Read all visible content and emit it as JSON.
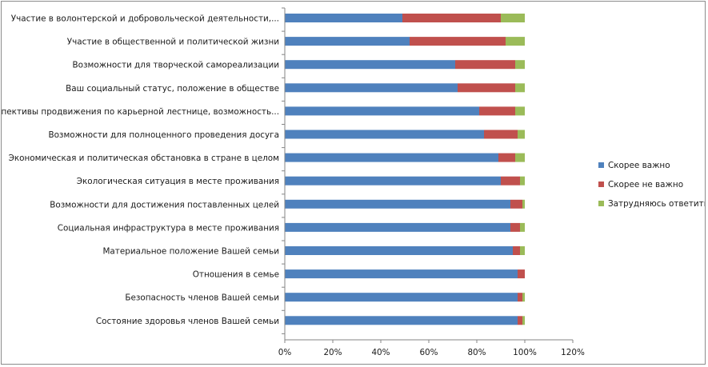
{
  "chart_data": {
    "type": "bar",
    "orientation": "horizontal",
    "stacked": true,
    "categories": [
      "Участие в волонтерской и добровольческой деятельности,...",
      "Участие в общественной и политической жизни",
      "Возможности для творческой самореализации",
      "Ваш социальный статус, положение в обществе",
      "Перспективы продвижения по карьерной лестнице, возможность...",
      "Возможности для полноценного проведения досуга",
      "Экономическая и политическая обстановка в стране в целом",
      "Экологическая ситуация в месте проживания",
      "Возможности для достижения поставленных целей",
      "Социальная инфраструктура в месте проживания",
      "Материальное положение Вашей семьи",
      "Отношения в семье",
      "Безопасность членов Вашей семьи",
      "Состояние здоровья членов Вашей семьи"
    ],
    "series": [
      {
        "name": "Скорее важно",
        "color": "#4f81bd",
        "values": [
          49,
          52,
          71,
          72,
          81,
          83,
          89,
          90,
          94,
          94,
          95,
          97,
          97,
          97
        ]
      },
      {
        "name": "Скорее не важно",
        "color": "#c0504d",
        "values": [
          41,
          40,
          25,
          24,
          15,
          14,
          7,
          8,
          5,
          4,
          3,
          3,
          2,
          2
        ]
      },
      {
        "name": "Затрудняюсь ответить",
        "color": "#9bbb59",
        "values": [
          10,
          8,
          4,
          4,
          4,
          3,
          4,
          2,
          1,
          2,
          2,
          0,
          1,
          1
        ]
      }
    ],
    "xaxis": {
      "min": 0,
      "max": 120,
      "ticks": [
        0,
        20,
        40,
        60,
        80,
        100,
        120
      ],
      "tick_labels": [
        "0%",
        "20%",
        "40%",
        "60%",
        "80%",
        "100%",
        "120%"
      ]
    },
    "legend_position": "right",
    "grid": false
  }
}
